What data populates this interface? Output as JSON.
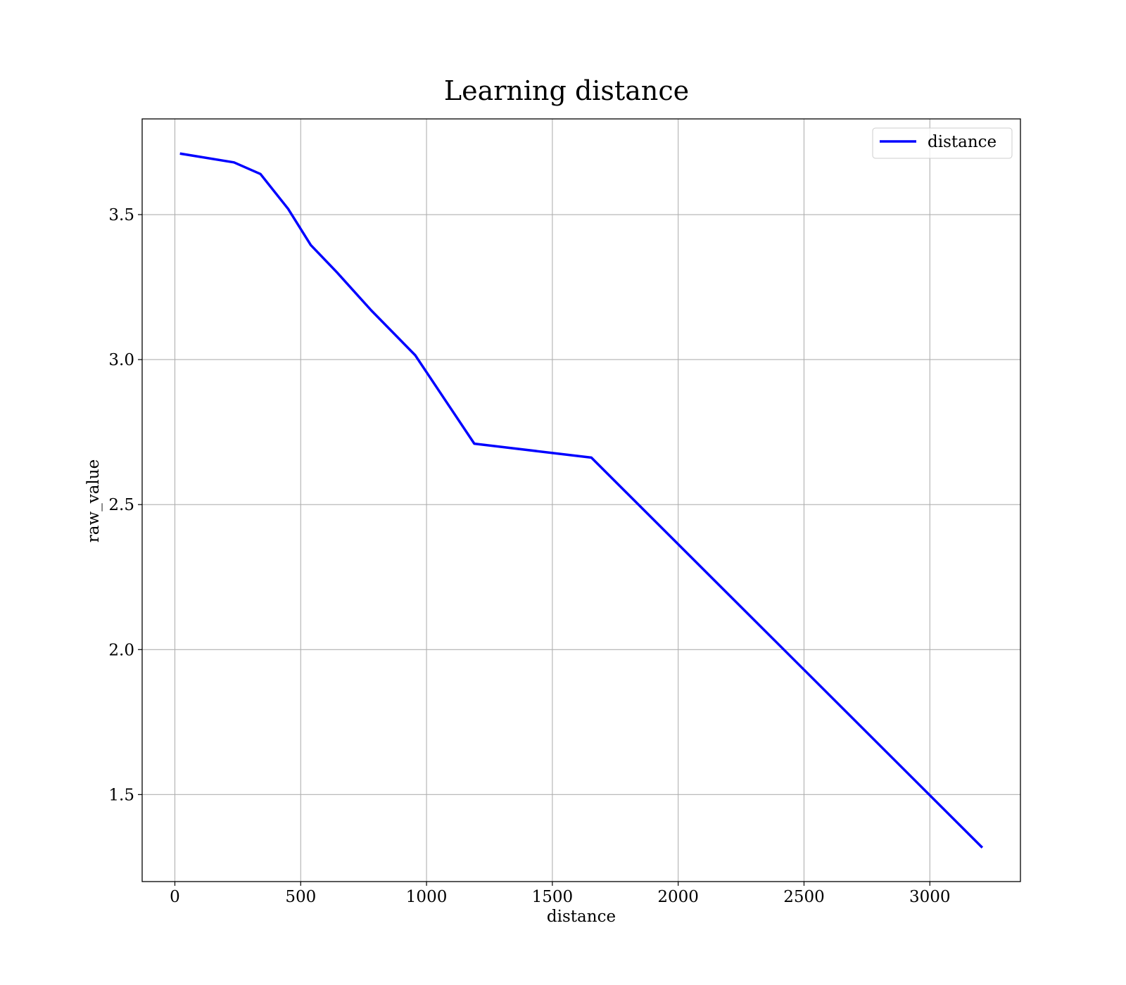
{
  "chart_data": {
    "type": "line",
    "title": "Learning distance",
    "xlabel": "distance",
    "ylabel": "raw_value",
    "xlim": [
      -130,
      3360
    ],
    "ylim": [
      1.2,
      3.83
    ],
    "xticks": [
      0,
      500,
      1000,
      1500,
      2000,
      2500,
      3000
    ],
    "xtick_labels": [
      "0",
      "500",
      "1000",
      "1500",
      "2000",
      "2500",
      "3000"
    ],
    "yticks": [
      1.5,
      2.0,
      2.5,
      3.0,
      3.5
    ],
    "ytick_labels": [
      "1.5",
      "2.0",
      "2.5",
      "3.0",
      "3.5"
    ],
    "grid": true,
    "legend_position": "top-right",
    "series": [
      {
        "name": "distance",
        "color": "#0000ff",
        "x": [
          25,
          235,
          340,
          450,
          540,
          645,
          780,
          955,
          1190,
          1655,
          3205
        ],
        "y": [
          3.71,
          3.68,
          3.64,
          3.52,
          3.395,
          3.3,
          3.17,
          3.015,
          2.71,
          2.662,
          1.32
        ]
      }
    ]
  }
}
